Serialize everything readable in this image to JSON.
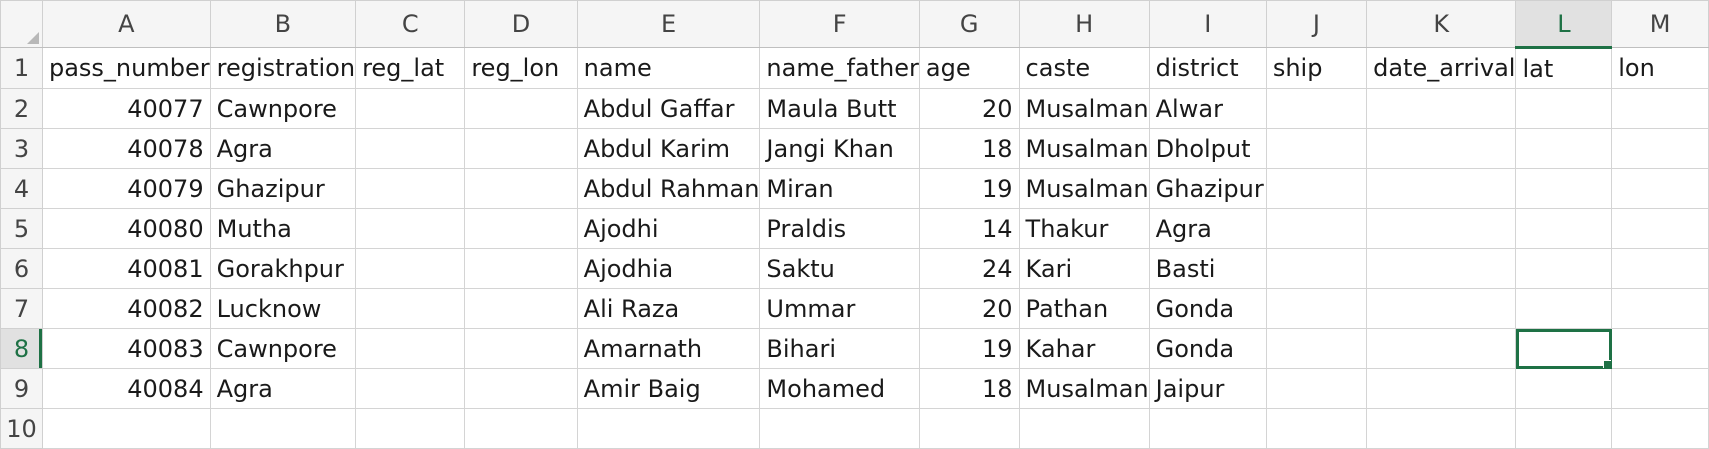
{
  "columns": [
    "A",
    "B",
    "C",
    "D",
    "E",
    "F",
    "G",
    "H",
    "I",
    "J",
    "K",
    "L",
    "M"
  ],
  "rows": [
    {
      "num": "1",
      "cells": [
        "pass_number",
        "registration",
        "reg_lat",
        "reg_lon",
        "name",
        "name_father",
        "age",
        "caste",
        "district",
        "ship",
        "date_arrival",
        "lat",
        "lon"
      ]
    },
    {
      "num": "2",
      "cells": [
        "40077",
        "Cawnpore",
        "",
        "",
        "Abdul Gaffar",
        "Maula Butt",
        "20",
        "Musalman",
        "Alwar",
        "",
        "",
        "",
        ""
      ]
    },
    {
      "num": "3",
      "cells": [
        "40078",
        "Agra",
        "",
        "",
        "Abdul Karim",
        "Jangi Khan",
        "18",
        "Musalman",
        "Dholput",
        "",
        "",
        "",
        ""
      ]
    },
    {
      "num": "4",
      "cells": [
        "40079",
        "Ghazipur",
        "",
        "",
        "Abdul Rahman",
        "Miran",
        "19",
        "Musalman",
        "Ghazipur",
        "",
        "",
        "",
        ""
      ]
    },
    {
      "num": "5",
      "cells": [
        "40080",
        "Mutha",
        "",
        "",
        "Ajodhi",
        "Praldis",
        "14",
        "Thakur",
        "Agra",
        "",
        "",
        "",
        ""
      ]
    },
    {
      "num": "6",
      "cells": [
        "40081",
        "Gorakhpur",
        "",
        "",
        "Ajodhia",
        "Saktu",
        "24",
        "Kari",
        "Basti",
        "",
        "",
        "",
        ""
      ]
    },
    {
      "num": "7",
      "cells": [
        "40082",
        "Lucknow",
        "",
        "",
        "Ali Raza",
        "Ummar",
        "20",
        "Pathan",
        "Gonda",
        "",
        "",
        "",
        ""
      ]
    },
    {
      "num": "8",
      "cells": [
        "40083",
        "Cawnpore",
        "",
        "",
        "Amarnath",
        "Bihari",
        "19",
        "Kahar",
        "Gonda",
        "",
        "",
        "",
        ""
      ]
    },
    {
      "num": "9",
      "cells": [
        "40084",
        "Agra",
        "",
        "",
        "Amir Baig",
        "Mohamed",
        "18",
        "Musalman",
        "Jaipur",
        "",
        "",
        "",
        ""
      ]
    },
    {
      "num": "10",
      "cells": [
        "",
        "",
        "",
        "",
        "",
        "",
        "",
        "",
        "",
        "",
        "",
        "",
        ""
      ]
    }
  ],
  "selected_cell": "L8",
  "accent_color": "#1e7145"
}
